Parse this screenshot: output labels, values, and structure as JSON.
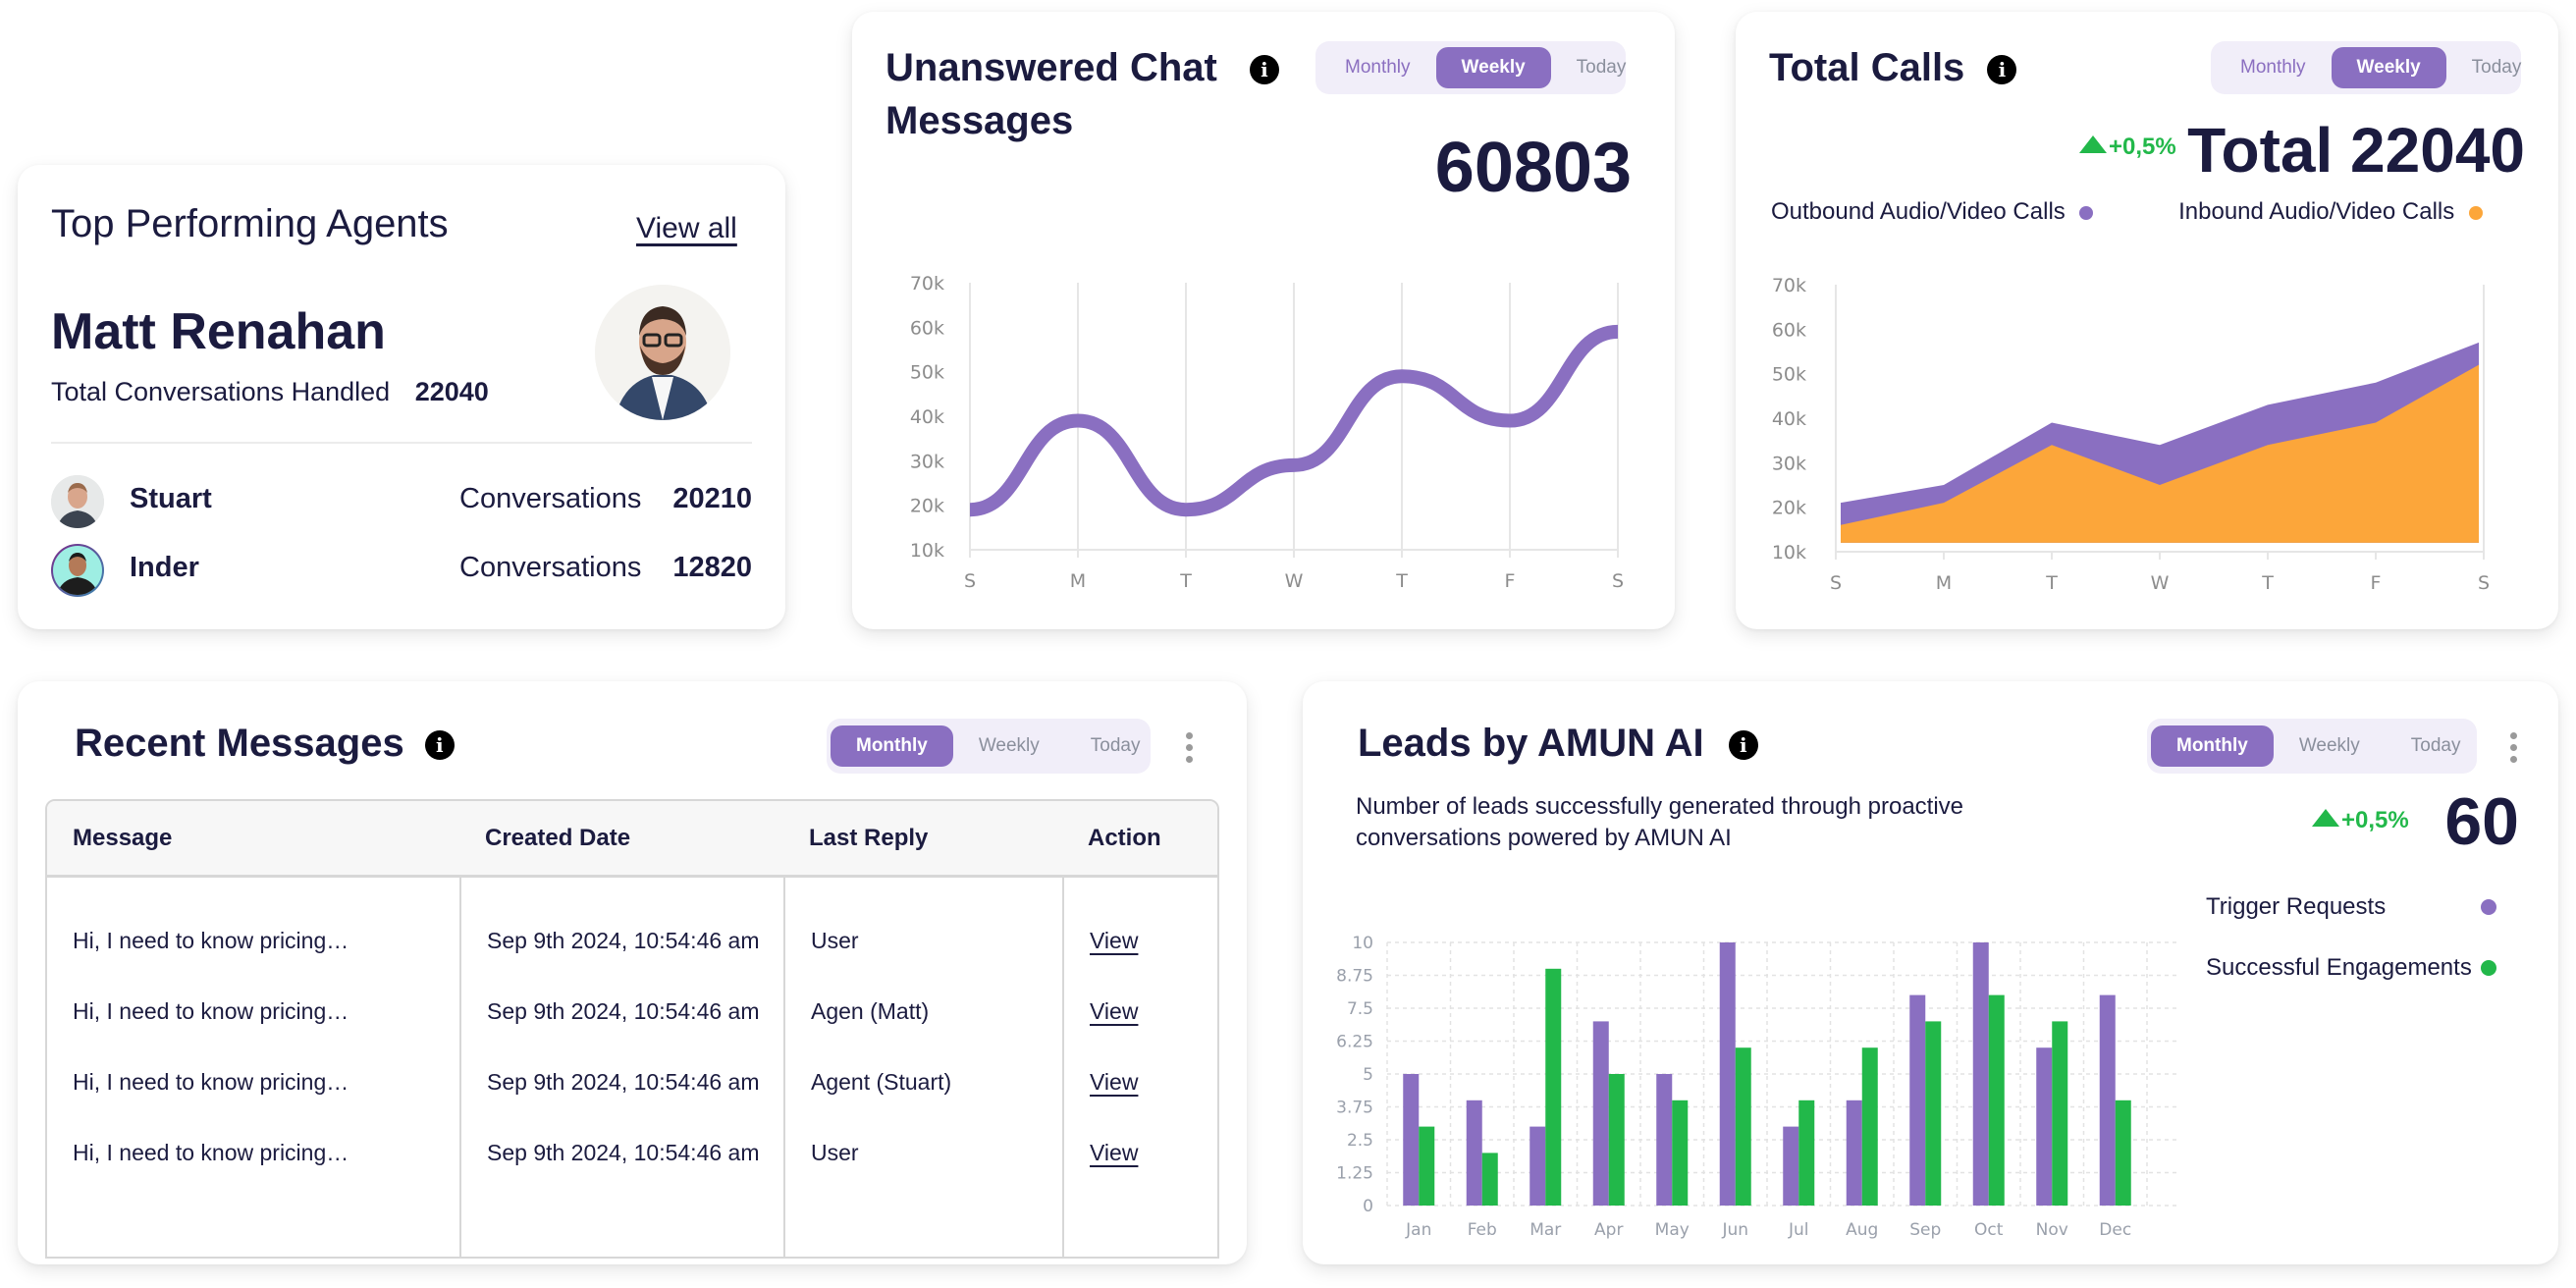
{
  "top_agents": {
    "title": "Top Performing Agents",
    "view_all": "View all",
    "top": {
      "name": "Matt Renahan",
      "label": "Total Conversations Handled",
      "value": "22040"
    },
    "others": [
      {
        "name": "Stuart",
        "label": "Conversations",
        "value": "20210"
      },
      {
        "name": "Inder",
        "label": "Conversations",
        "value": "12820"
      }
    ]
  },
  "unanswered": {
    "title_line1": "Unanswered Chat",
    "title_line2": "Messages",
    "info_icon": "i",
    "tabs": [
      "Monthly",
      "Weekly",
      "Today"
    ],
    "active_tab": "Weekly",
    "total": "60803"
  },
  "total_calls": {
    "title": "Total Calls",
    "info_icon": "i",
    "tabs": [
      "Monthly",
      "Weekly",
      "Today"
    ],
    "active_tab": "Weekly",
    "change": "+0,5%",
    "total": "Total 22040",
    "legend": [
      {
        "label": "Outbound Audio/Video Calls",
        "color": "#8a6fc1"
      },
      {
        "label": "Inbound Audio/Video Calls",
        "color": "#fca63a"
      }
    ]
  },
  "recent_messages": {
    "title": "Recent Messages",
    "info_icon": "i",
    "tabs": [
      "Monthly",
      "Weekly",
      "Today"
    ],
    "active_tab": "Monthly",
    "columns": [
      "Message",
      "Created Date",
      "Last Reply",
      "Action"
    ],
    "rows": [
      {
        "message": "Hi, I need to know pricing…",
        "created": "Sep 9th 2024, 10:54:46 am",
        "reply": "User",
        "action": "View"
      },
      {
        "message": "Hi, I need to know pricing…",
        "created": "Sep 9th 2024, 10:54:46 am",
        "reply": "Agen (Matt)",
        "action": "View"
      },
      {
        "message": "Hi, I need to know pricing…",
        "created": "Sep 9th 2024, 10:54:46 am",
        "reply": "Agent (Stuart)",
        "action": "View"
      },
      {
        "message": "Hi, I need to know pricing…",
        "created": "Sep 9th 2024, 10:54:46 am",
        "reply": "User",
        "action": "View"
      }
    ]
  },
  "leads": {
    "title": "Leads by AMUN AI",
    "info_icon": "i",
    "tabs": [
      "Monthly",
      "Weekly",
      "Today"
    ],
    "active_tab": "Monthly",
    "description_line1": "Number of leads successfully generated through proactive",
    "description_line2": "conversations powered by AMUN AI",
    "change": "+0,5%",
    "total": "60",
    "legend": [
      {
        "label": "Trigger Requests",
        "color": "#8a6fc1"
      },
      {
        "label": "Successful Engagements",
        "color": "#22b84a"
      }
    ]
  },
  "chart_data": [
    {
      "type": "line",
      "title": "Unanswered Chat Messages",
      "categories": [
        "S",
        "M",
        "T",
        "W",
        "T",
        "F",
        "S"
      ],
      "series": [
        {
          "name": "Unanswered",
          "values": [
            19000,
            39000,
            19000,
            29000,
            49000,
            39000,
            59000
          ],
          "color": "#8a6fc1"
        }
      ],
      "yticks": [
        "10k",
        "20k",
        "30k",
        "40k",
        "50k",
        "60k",
        "70k"
      ],
      "ylim": [
        10000,
        70000
      ],
      "smooth": true,
      "grid": "vertical"
    },
    {
      "type": "area",
      "title": "Total Calls",
      "categories": [
        "S",
        "M",
        "T",
        "W",
        "T",
        "F",
        "S"
      ],
      "series": [
        {
          "name": "Outbound Audio/Video Calls",
          "values": [
            21000,
            25000,
            39000,
            34000,
            43000,
            48000,
            57000
          ],
          "color": "#8a6fc1"
        },
        {
          "name": "Inbound Audio/Video Calls",
          "values": [
            16000,
            21000,
            34000,
            25000,
            34000,
            39000,
            52000
          ],
          "color": "#fca63a"
        }
      ],
      "baseline": 12000,
      "yticks": [
        "10k",
        "20k",
        "30k",
        "40k",
        "50k",
        "60k",
        "70k"
      ],
      "ylim": [
        10000,
        70000
      ],
      "legend": "top"
    },
    {
      "type": "bar",
      "title": "Leads by AMUN AI",
      "categories": [
        "Jan",
        "Feb",
        "Mar",
        "Apr",
        "May",
        "Jun",
        "Jul",
        "Aug",
        "Sep",
        "Oct",
        "Nov",
        "Dec"
      ],
      "series": [
        {
          "name": "Trigger Requests",
          "values": [
            5,
            4,
            3,
            7,
            5,
            10,
            3,
            4,
            8,
            10,
            6,
            8
          ],
          "color": "#8a6fc1"
        },
        {
          "name": "Successful Engagements",
          "values": [
            3,
            2,
            9,
            5,
            4,
            6,
            4,
            6,
            7,
            8,
            7,
            4
          ],
          "color": "#22b84a"
        }
      ],
      "yticks": [
        "0",
        "1.25",
        "2.5",
        "3.75",
        "5",
        "6.25",
        "7.5",
        "8.75",
        "10"
      ],
      "ylim": [
        0,
        10
      ],
      "grid": "dashed",
      "legend": "right"
    }
  ]
}
